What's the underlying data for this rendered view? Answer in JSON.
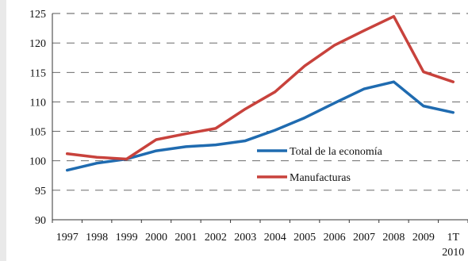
{
  "chart_data": {
    "type": "line",
    "title": "",
    "xlabel": "",
    "ylabel": "",
    "ylim": [
      90,
      125
    ],
    "yticks": [
      90,
      95,
      100,
      105,
      110,
      115,
      120,
      125
    ],
    "grid": "horizontal dashed",
    "legend_position": "center-right",
    "categories": [
      "1997",
      "1998",
      "1999",
      "2000",
      "2001",
      "2002",
      "2003",
      "2004",
      "2005",
      "2006",
      "2007",
      "2008",
      "2009",
      "1T 2010"
    ],
    "series": [
      {
        "name": "Total de la economía",
        "color": "#1f6bb0",
        "values": [
          98.4,
          99.6,
          100.3,
          101.7,
          102.4,
          102.7,
          103.4,
          105.2,
          107.3,
          109.8,
          112.2,
          113.4,
          109.3,
          108.2
        ]
      },
      {
        "name": "Manufacturas",
        "color": "#c8423c",
        "values": [
          101.2,
          100.6,
          100.3,
          103.6,
          104.6,
          105.5,
          108.8,
          111.7,
          116.1,
          119.6,
          122.1,
          124.5,
          115.1,
          113.4
        ]
      }
    ]
  }
}
